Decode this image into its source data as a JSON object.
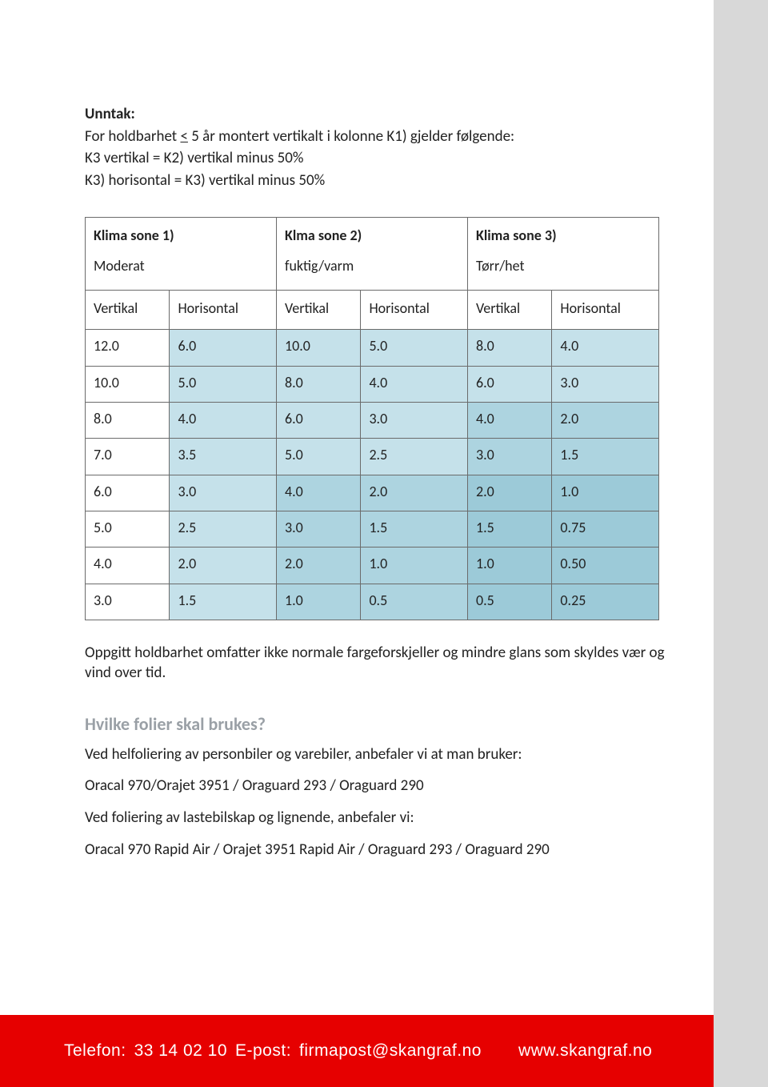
{
  "intro": {
    "heading": "Unntak:",
    "line1_pre": "For holdbarhet ",
    "line1_underline": "<",
    "line1_post": " 5 år montert vertikalt i kolonne K1) gjelder følgende:",
    "line2": "K3 vertikal = K2) vertikal minus 50%",
    "line3": "K3) horisontal = K3) vertikal minus 50%"
  },
  "table": {
    "zones": [
      {
        "title": "Klima sone 1)",
        "subtitle": "Moderat"
      },
      {
        "title": "Klma sone 2)",
        "subtitle": "fuktig/varm"
      },
      {
        "title": "Klima sone 3)",
        "subtitle": "Tørr/het"
      }
    ],
    "subheaders": [
      "Vertikal",
      "Horisontal",
      "Vertikal",
      "Horisontal",
      "Vertikal",
      "Horisontal"
    ],
    "rows": [
      {
        "v": [
          "12.0",
          "6.0",
          "10.0",
          "5.0",
          "8.0",
          "4.0"
        ],
        "s": [
          "c-white",
          "c-light",
          "c-light",
          "c-light",
          "c-light",
          "c-light"
        ]
      },
      {
        "v": [
          "10.0",
          "5.0",
          "8.0",
          "4.0",
          "6.0",
          "3.0"
        ],
        "s": [
          "c-white",
          "c-light",
          "c-light",
          "c-light",
          "c-light",
          "c-light"
        ]
      },
      {
        "v": [
          "8.0",
          "4.0",
          "6.0",
          "3.0",
          "4.0",
          "2.0"
        ],
        "s": [
          "c-white",
          "c-light",
          "c-light",
          "c-light",
          "c-mid",
          "c-mid"
        ]
      },
      {
        "v": [
          "7.0",
          "3.5",
          "5.0",
          "2.5",
          "3.0",
          "1.5"
        ],
        "s": [
          "c-white",
          "c-light",
          "c-light",
          "c-light",
          "c-mid",
          "c-mid"
        ]
      },
      {
        "v": [
          "6.0",
          "3.0",
          "4.0",
          "2.0",
          "2.0",
          "1.0"
        ],
        "s": [
          "c-white",
          "c-light",
          "c-mid",
          "c-mid",
          "c-dark",
          "c-dark"
        ]
      },
      {
        "v": [
          "5.0",
          "2.5",
          "3.0",
          "1.5",
          "1.5",
          "0.75"
        ],
        "s": [
          "c-white",
          "c-light",
          "c-mid",
          "c-mid",
          "c-dark",
          "c-dark"
        ]
      },
      {
        "v": [
          "4.0",
          "2.0",
          "2.0",
          "1.0",
          "1.0",
          "0.50"
        ],
        "s": [
          "c-white",
          "c-light",
          "c-mid",
          "c-mid",
          "c-dark",
          "c-dark"
        ]
      },
      {
        "v": [
          "3.0",
          "1.5",
          "1.0",
          "0.5",
          "0.5",
          "0.25"
        ],
        "s": [
          "c-white",
          "c-light",
          "c-mid",
          "c-mid",
          "c-dark",
          "c-dark"
        ]
      }
    ],
    "colors": {
      "border": "#6b6b6b",
      "c-white": "#ffffff",
      "c-light": "#c5e1ea",
      "c-mid": "#add4e0",
      "c-dark": "#9ccad8"
    }
  },
  "after_table": "Oppgitt holdbarhet omfatter ikke normale fargeforskjeller og mindre glans som skyldes vær og vind over tid.",
  "section": {
    "title": "Hvilke folier skal brukes?",
    "p1": "Ved helfoliering av personbiler og varebiler, anbefaler vi at man bruker:",
    "p2": "Oracal 970/Orajet 3951 / Oraguard 293 / Oraguard 290",
    "p3": "Ved foliering av lastebilskap og lignende, anbefaler vi:",
    "p4": " Oracal 970 Rapid Air / Orajet 3951 Rapid Air / Oraguard 293 / Oraguard 290"
  },
  "footer": {
    "phone_label": "Telefon:",
    "phone": "33 14 02 10",
    "email_label": "E-post:",
    "email": "firmapost@skangraf.no",
    "url": "www.skangraf.no",
    "bg": "#e60000"
  }
}
